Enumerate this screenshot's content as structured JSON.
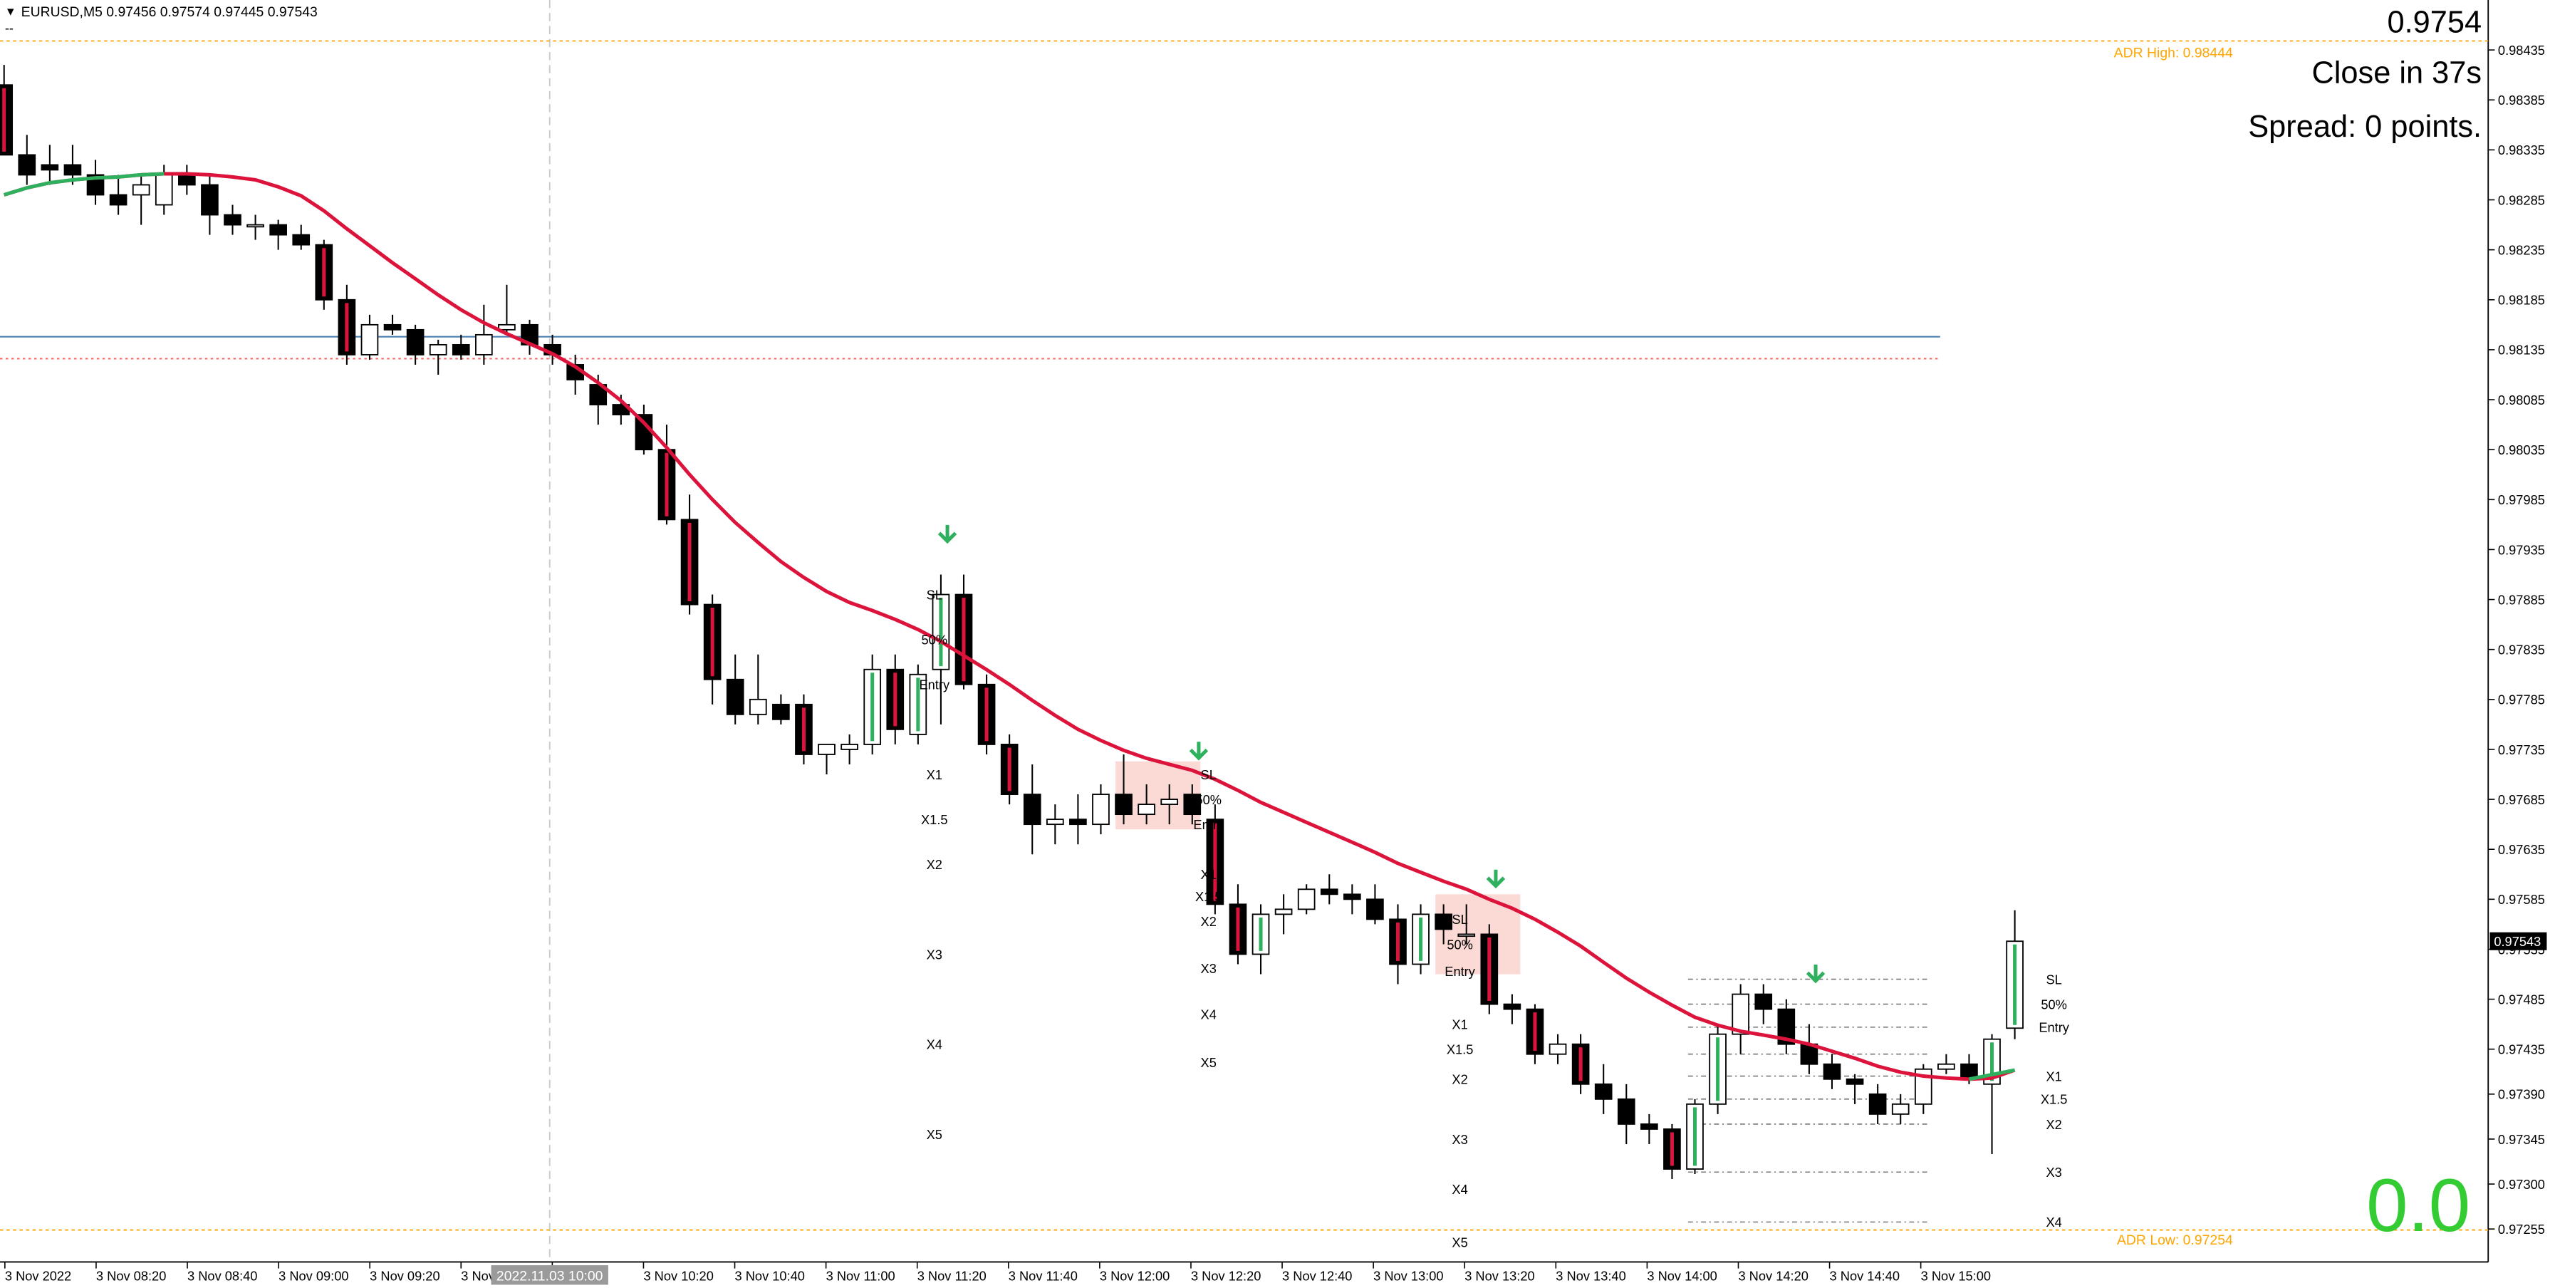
{
  "header": {
    "symbol_info": "EURUSD,M5  0.97456 0.97574 0.97445 0.97543"
  },
  "overlay": {
    "price": "0.9754",
    "close_timer": "Close in 37s",
    "spread": "Spread: 0 points.",
    "pnl": "0.0"
  },
  "adr": {
    "high_label": "ADR High: 0.98444",
    "high_value": 0.98444,
    "low_label": "ADR Low: 0.97254",
    "low_value": 0.97254
  },
  "crosshair": {
    "time_label": "2022.11.03 10:00"
  },
  "current_price_label": "0.97543",
  "colors": {
    "bear_fill": "#000000",
    "bull_fill": "#ffffff",
    "ma_line": "#dc143c",
    "ma_line_up": "#2fb05e",
    "signal_arrow": "#2fb05e",
    "adr_line": "#ffa500",
    "level_line": "#4a7fb0",
    "level_dotted": "#ff6060",
    "zone_fill": "#fbd9d5",
    "pnl_text": "#33cc33"
  },
  "chart_data": {
    "type": "candlestick",
    "symbol": "EURUSD",
    "timeframe": "M5",
    "y_ticks": [
      "0.98435",
      "0.98385",
      "0.98335",
      "0.98285",
      "0.98235",
      "0.98185",
      "0.98135",
      "0.98085",
      "0.98035",
      "0.97985",
      "0.97935",
      "0.97885",
      "0.97835",
      "0.97785",
      "0.97735",
      "0.97685",
      "0.97635",
      "0.97585",
      "0.97535",
      "0.97485",
      "0.97435",
      "0.97390",
      "0.97345",
      "0.97300",
      "0.97255"
    ],
    "x_ticks": [
      "3 Nov 2022",
      "3 Nov 08:20",
      "3 Nov 08:40",
      "3 Nov 09:00",
      "3 Nov 09:20",
      "3 Nov 09:40",
      "3 Nov 10:00",
      "3 Nov 10:20",
      "3 Nov 10:40",
      "3 Nov 11:00",
      "3 Nov 11:20",
      "3 Nov 11:40",
      "3 Nov 12:00",
      "3 Nov 12:20",
      "3 Nov 12:40",
      "3 Nov 13:00",
      "3 Nov 13:20",
      "3 Nov 13:40",
      "3 Nov 14:00",
      "3 Nov 14:20",
      "3 Nov 14:40",
      "3 Nov 15:00"
    ],
    "x_tick_prefix": "3 Nov",
    "ylim": [
      0.97222,
      0.98485
    ],
    "candles": [
      [
        0.984,
        0.9842,
        0.9834,
        0.9833
      ],
      [
        0.9833,
        0.9835,
        0.983,
        0.9831
      ],
      [
        0.9832,
        0.9834,
        0.983,
        0.98315
      ],
      [
        0.9832,
        0.9834,
        0.983,
        0.9831
      ],
      [
        0.9831,
        0.98325,
        0.9828,
        0.9829
      ],
      [
        0.9829,
        0.9831,
        0.9827,
        0.9828
      ],
      [
        0.9829,
        0.9831,
        0.9826,
        0.983
      ],
      [
        0.9828,
        0.9832,
        0.9827,
        0.9831
      ],
      [
        0.9831,
        0.9832,
        0.9829,
        0.983
      ],
      [
        0.983,
        0.9831,
        0.9825,
        0.9827
      ],
      [
        0.9827,
        0.9828,
        0.9825,
        0.9826
      ],
      [
        0.9826,
        0.9827,
        0.98245,
        0.9826
      ],
      [
        0.9826,
        0.98265,
        0.98235,
        0.9825
      ],
      [
        0.9825,
        0.9826,
        0.98235,
        0.9824
      ],
      [
        0.9824,
        0.98245,
        0.98175,
        0.98185
      ],
      [
        0.98185,
        0.982,
        0.9812,
        0.9813
      ],
      [
        0.9813,
        0.9817,
        0.98125,
        0.9816
      ],
      [
        0.9816,
        0.9817,
        0.9815,
        0.98155
      ],
      [
        0.98155,
        0.9816,
        0.9812,
        0.9813
      ],
      [
        0.9813,
        0.98145,
        0.9811,
        0.9814
      ],
      [
        0.9814,
        0.9815,
        0.98125,
        0.9813
      ],
      [
        0.9813,
        0.9818,
        0.9812,
        0.9815
      ],
      [
        0.98155,
        0.982,
        0.9815,
        0.9816
      ],
      [
        0.9816,
        0.98165,
        0.9813,
        0.9814
      ],
      [
        0.9814,
        0.9815,
        0.9812,
        0.9813
      ],
      [
        0.9812,
        0.9813,
        0.9809,
        0.98105
      ],
      [
        0.981,
        0.9811,
        0.9806,
        0.9808
      ],
      [
        0.9808,
        0.9809,
        0.9806,
        0.9807
      ],
      [
        0.9807,
        0.9808,
        0.9803,
        0.98035
      ],
      [
        0.98035,
        0.9806,
        0.9796,
        0.97965
      ],
      [
        0.97965,
        0.9799,
        0.9787,
        0.9788
      ],
      [
        0.9788,
        0.9789,
        0.9778,
        0.97805
      ],
      [
        0.97805,
        0.9783,
        0.9776,
        0.9777
      ],
      [
        0.9777,
        0.9783,
        0.9776,
        0.97785
      ],
      [
        0.9778,
        0.9779,
        0.9776,
        0.97765
      ],
      [
        0.9778,
        0.9779,
        0.9772,
        0.9773
      ],
      [
        0.9773,
        0.9774,
        0.9771,
        0.9774
      ],
      [
        0.97735,
        0.9775,
        0.9772,
        0.9774
      ],
      [
        0.9774,
        0.9783,
        0.9773,
        0.97815
      ],
      [
        0.97815,
        0.9783,
        0.9774,
        0.97755
      ],
      [
        0.9775,
        0.9782,
        0.9774,
        0.9781
      ],
      [
        0.97815,
        0.9791,
        0.9776,
        0.9789
      ],
      [
        0.9789,
        0.9791,
        0.97795,
        0.978
      ],
      [
        0.978,
        0.9781,
        0.9773,
        0.9774
      ],
      [
        0.9774,
        0.9775,
        0.9768,
        0.9769
      ],
      [
        0.9769,
        0.9772,
        0.9763,
        0.9766
      ],
      [
        0.9766,
        0.9768,
        0.9764,
        0.97665
      ],
      [
        0.97665,
        0.9769,
        0.9764,
        0.9766
      ],
      [
        0.9766,
        0.977,
        0.9765,
        0.9769
      ],
      [
        0.9769,
        0.9773,
        0.9766,
        0.9767
      ],
      [
        0.9767,
        0.977,
        0.9766,
        0.9768
      ],
      [
        0.9768,
        0.977,
        0.9766,
        0.97685
      ],
      [
        0.9769,
        0.977,
        0.9766,
        0.9767
      ],
      [
        0.97665,
        0.9768,
        0.9757,
        0.9758
      ],
      [
        0.9758,
        0.976,
        0.9752,
        0.9753
      ],
      [
        0.9753,
        0.9758,
        0.9751,
        0.9757
      ],
      [
        0.9757,
        0.9759,
        0.9755,
        0.97575
      ],
      [
        0.97575,
        0.976,
        0.9757,
        0.97595
      ],
      [
        0.97595,
        0.9761,
        0.9758,
        0.9759
      ],
      [
        0.9759,
        0.976,
        0.9757,
        0.97585
      ],
      [
        0.97585,
        0.976,
        0.9756,
        0.97565
      ],
      [
        0.97565,
        0.9758,
        0.975,
        0.9752
      ],
      [
        0.9752,
        0.9758,
        0.9751,
        0.9757
      ],
      [
        0.9757,
        0.9758,
        0.9754,
        0.97555
      ],
      [
        0.9755,
        0.9758,
        0.9754,
        0.9755
      ],
      [
        0.9755,
        0.9756,
        0.9747,
        0.9748
      ],
      [
        0.9748,
        0.9749,
        0.9746,
        0.97475
      ],
      [
        0.97475,
        0.9748,
        0.9742,
        0.9743
      ],
      [
        0.9743,
        0.9745,
        0.9742,
        0.9744
      ],
      [
        0.9744,
        0.9745,
        0.9739,
        0.974
      ],
      [
        0.974,
        0.9742,
        0.9737,
        0.97385
      ],
      [
        0.97385,
        0.974,
        0.9734,
        0.9736
      ],
      [
        0.9736,
        0.9737,
        0.9734,
        0.97355
      ],
      [
        0.97355,
        0.9736,
        0.97305,
        0.97315
      ],
      [
        0.97315,
        0.97385,
        0.9731,
        0.9738
      ],
      [
        0.9738,
        0.9746,
        0.9737,
        0.9745
      ],
      [
        0.9745,
        0.975,
        0.9743,
        0.9749
      ],
      [
        0.9749,
        0.975,
        0.9746,
        0.97475
      ],
      [
        0.97475,
        0.97485,
        0.9743,
        0.9744
      ],
      [
        0.9744,
        0.9746,
        0.9741,
        0.9742
      ],
      [
        0.9742,
        0.9743,
        0.97395,
        0.97405
      ],
      [
        0.97405,
        0.9741,
        0.9738,
        0.974
      ],
      [
        0.9739,
        0.974,
        0.9736,
        0.9737
      ],
      [
        0.9737,
        0.9739,
        0.9736,
        0.9738
      ],
      [
        0.9738,
        0.9742,
        0.9737,
        0.97415
      ],
      [
        0.97415,
        0.9743,
        0.9741,
        0.9742
      ],
      [
        0.9742,
        0.9743,
        0.974,
        0.97405
      ],
      [
        0.974,
        0.9745,
        0.9733,
        0.97445
      ],
      [
        0.97456,
        0.97574,
        0.97445,
        0.97543
      ]
    ],
    "moving_average": [
      0.9829,
      0.98297,
      0.98302,
      0.98305,
      0.98307,
      0.98308,
      0.9831,
      0.98311,
      0.98311,
      0.9831,
      0.98308,
      0.98305,
      0.98298,
      0.98289,
      0.98274,
      0.98256,
      0.98239,
      0.98222,
      0.98206,
      0.9819,
      0.98175,
      0.98162,
      0.98151,
      0.98141,
      0.98131,
      0.98118,
      0.98102,
      0.98084,
      0.98062,
      0.98037,
      0.9801,
      0.97985,
      0.97962,
      0.97942,
      0.97923,
      0.97907,
      0.97893,
      0.97882,
      0.97874,
      0.97865,
      0.97855,
      0.97843,
      0.97829,
      0.97815,
      0.978,
      0.97784,
      0.97769,
      0.97755,
      0.97744,
      0.97734,
      0.97726,
      0.9772,
      0.97714,
      0.97705,
      0.97694,
      0.97682,
      0.97672,
      0.97662,
      0.97652,
      0.97642,
      0.97632,
      0.97621,
      0.97612,
      0.97603,
      0.97595,
      0.97585,
      0.97576,
      0.97565,
      0.97552,
      0.97538,
      0.97522,
      0.97506,
      0.97492,
      0.97479,
      0.97467,
      0.97459,
      0.97453,
      0.97449,
      0.97445,
      0.9744,
      0.97433,
      0.97426,
      0.97418,
      0.97412,
      0.97408,
      0.97406,
      0.97405,
      0.97406,
      0.97414
    ],
    "horizontal_lines": [
      {
        "name": "level-solid",
        "price": 0.98148,
        "style": "solid"
      },
      {
        "name": "level-dotted",
        "price": 0.98126,
        "style": "dotted"
      }
    ],
    "signals": [
      {
        "bar": 41,
        "price": 0.97945,
        "type": "sell"
      },
      {
        "bar": 52,
        "price": 0.97728,
        "type": "sell"
      },
      {
        "bar": 65,
        "price": 0.976,
        "type": "sell"
      },
      {
        "bar": 79,
        "price": 0.97505,
        "type": "sell"
      }
    ],
    "trade_setups": [
      {
        "zone": null,
        "labels": [
          {
            "text": "SL",
            "bar": 41,
            "price": 0.9789
          },
          {
            "text": "50%",
            "bar": 41,
            "price": 0.97845
          },
          {
            "text": "Entry",
            "bar": 41,
            "price": 0.978
          },
          {
            "text": "X1",
            "bar": 41,
            "price": 0.9771
          },
          {
            "text": "X1.5",
            "bar": 41,
            "price": 0.97665
          },
          {
            "text": "X2",
            "bar": 41,
            "price": 0.9762
          },
          {
            "text": "X3",
            "bar": 41,
            "price": 0.9753
          },
          {
            "text": "X4",
            "bar": 41,
            "price": 0.9744
          },
          {
            "text": "X5",
            "bar": 41,
            "price": 0.9735
          }
        ]
      },
      {
        "zone": {
          "bar_from": 49,
          "bar_to": 52,
          "price_top": 0.97723,
          "price_bottom": 0.97655
        },
        "labels": [
          {
            "text": "SL",
            "bar": 53,
            "price": 0.9771
          },
          {
            "text": "50%",
            "bar": 53,
            "price": 0.97685
          },
          {
            "text": "Entry",
            "bar": 53,
            "price": 0.9766
          },
          {
            "text": "X1",
            "bar": 53,
            "price": 0.9761
          },
          {
            "text": "X1.5",
            "bar": 53,
            "price": 0.97588
          },
          {
            "text": "X2",
            "bar": 53,
            "price": 0.97563
          },
          {
            "text": "X3",
            "bar": 53,
            "price": 0.97516
          },
          {
            "text": "X4",
            "bar": 53,
            "price": 0.9747
          },
          {
            "text": "X5",
            "bar": 53,
            "price": 0.97422
          }
        ]
      },
      {
        "zone": {
          "bar_from": 63,
          "bar_to": 66,
          "price_top": 0.9759,
          "price_bottom": 0.9751
        },
        "labels": [
          {
            "text": "SL",
            "bar": 64,
            "price": 0.97565
          },
          {
            "text": "50%",
            "bar": 64,
            "price": 0.9754
          },
          {
            "text": "Entry",
            "bar": 64,
            "price": 0.97513
          },
          {
            "text": "X1",
            "bar": 64,
            "price": 0.9746
          },
          {
            "text": "X1.5",
            "bar": 64,
            "price": 0.97435
          },
          {
            "text": "X2",
            "bar": 64,
            "price": 0.97405
          },
          {
            "text": "X3",
            "bar": 64,
            "price": 0.97345
          },
          {
            "text": "X4",
            "bar": 64,
            "price": 0.97295
          },
          {
            "text": "X5",
            "bar": 64,
            "price": 0.97242
          }
        ]
      },
      {
        "zone": null,
        "labels": [
          {
            "text": "SL",
            "bar": 90,
            "price": 0.97505
          },
          {
            "text": "50%",
            "bar": 90,
            "price": 0.9748
          },
          {
            "text": "Entry",
            "bar": 90,
            "price": 0.97457
          },
          {
            "text": "X1",
            "bar": 90,
            "price": 0.97408
          },
          {
            "text": "X1.5",
            "bar": 90,
            "price": 0.97385
          },
          {
            "text": "X2",
            "bar": 90,
            "price": 0.9736
          },
          {
            "text": "X3",
            "bar": 90,
            "price": 0.97312
          },
          {
            "text": "X4",
            "bar": 90,
            "price": 0.97262
          }
        ]
      }
    ],
    "last_setup_lines": [
      0.97505,
      0.9748,
      0.97457,
      0.9743,
      0.97408,
      0.97385,
      0.9736,
      0.97312,
      0.97262
    ],
    "grid": false,
    "legend": "none"
  }
}
